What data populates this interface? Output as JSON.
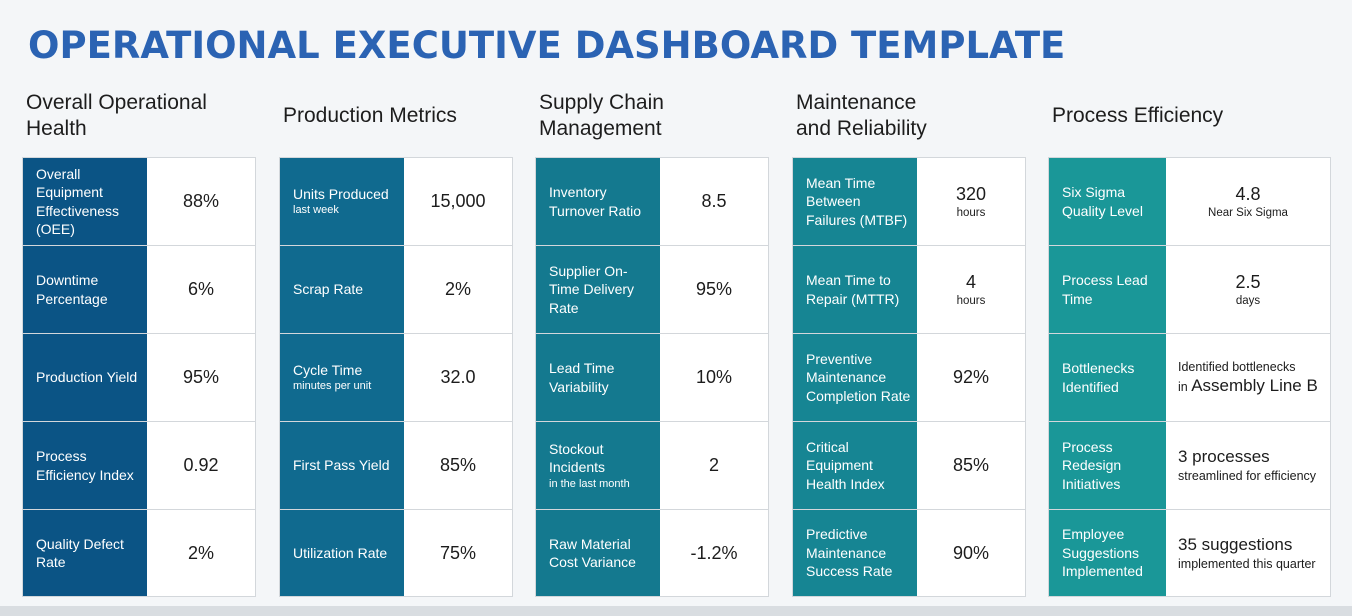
{
  "title": "OPERATIONAL EXECUTIVE DASHBOARD TEMPLATE",
  "sections": [
    {
      "title_line1": "Overall Operational",
      "title_line2": "Health",
      "rows": [
        {
          "label": "Overall Equipment Effectiveness (OEE)",
          "value": "88%"
        },
        {
          "label": "Downtime Percentage",
          "value": "6%"
        },
        {
          "label": "Production Yield",
          "value": "95%"
        },
        {
          "label": "Process Efficiency Index",
          "value": "0.92"
        },
        {
          "label": "Quality Defect Rate",
          "value": "2%"
        }
      ]
    },
    {
      "title_line1": "Production Metrics",
      "rows": [
        {
          "label": "Units Produced",
          "label_sub": "last week",
          "value": "15,000"
        },
        {
          "label": "Scrap Rate",
          "value": "2%"
        },
        {
          "label": "Cycle Time",
          "label_sub": "minutes per unit",
          "value": "32.0"
        },
        {
          "label": "First Pass Yield",
          "value": "85%"
        },
        {
          "label": "Utilization Rate",
          "value": "75%"
        }
      ]
    },
    {
      "title_line1": "Supply Chain",
      "title_line2": "Management",
      "rows": [
        {
          "label": "Inventory Turnover Ratio",
          "value": "8.5"
        },
        {
          "label": "Supplier On-Time Delivery Rate",
          "value": "95%"
        },
        {
          "label": "Lead Time Variability",
          "value": "10%"
        },
        {
          "label": "Stockout Incidents",
          "label_sub": "in the last month",
          "value": "2"
        },
        {
          "label": "Raw Material Cost Variance",
          "value": "-1.2%"
        }
      ]
    },
    {
      "title_line1": "Maintenance",
      "title_line2": "and Reliability",
      "rows": [
        {
          "label": "Mean Time Between Failures (MTBF)",
          "value": "320",
          "value_sub": "hours"
        },
        {
          "label": "Mean Time to Repair (MTTR)",
          "value": "4",
          "value_sub": "hours"
        },
        {
          "label": "Preventive Maintenance Completion Rate",
          "value": "92%"
        },
        {
          "label": "Critical Equipment Health Index",
          "value": "85%"
        },
        {
          "label": "Predictive Maintenance Success Rate",
          "value": "90%"
        }
      ]
    },
    {
      "title_line1": "Process Efficiency",
      "rows": [
        {
          "label": "Six Sigma Quality Level",
          "value": "4.8",
          "value_sub": "Near Six Sigma"
        },
        {
          "label": "Process Lead Time",
          "value": "2.5",
          "value_sub": "days"
        },
        {
          "label": "Bottlenecks Identified",
          "value_small": "Identified bottlenecks",
          "value_line2_prefix": "in ",
          "value_line2": "Assembly Line B"
        },
        {
          "label": "Process Redesign Initiatives",
          "value": "3 processes",
          "value_sub": "streamlined for efficiency"
        },
        {
          "label": "Employee Suggestions Implemented",
          "value": "35 suggestions",
          "value_sub": "implemented this quarter"
        }
      ]
    }
  ]
}
